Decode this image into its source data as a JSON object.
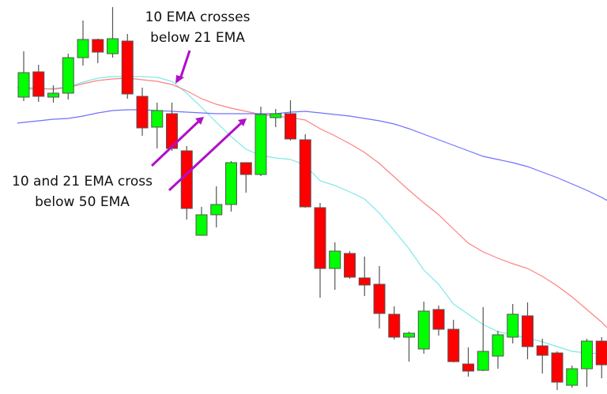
{
  "chart_data": {
    "type": "candlestick",
    "title": "",
    "xlabel": "",
    "ylabel": "",
    "grid": false,
    "colors": {
      "up": "#00ff00",
      "down": "#ff0000",
      "wick": "#555555",
      "ema10": "#7fe8e8",
      "ema21": "#ff8080",
      "ema50": "#7070ff",
      "arrow": "#b010c8"
    },
    "candles": [
      [
        377,
        435,
        372,
        408
      ],
      [
        409,
        418,
        371,
        378
      ],
      [
        377,
        392,
        370,
        382
      ],
      [
        382,
        432,
        374,
        427
      ],
      [
        427,
        474,
        417,
        450
      ],
      [
        450,
        451,
        420,
        434
      ],
      [
        432,
        491,
        427,
        451
      ],
      [
        448,
        457,
        375,
        381
      ],
      [
        378,
        389,
        328,
        338
      ],
      [
        339,
        370,
        312,
        360
      ],
      [
        356,
        370,
        309,
        312
      ],
      [
        309,
        315,
        222,
        236
      ],
      [
        202,
        238,
        202,
        228
      ],
      [
        228,
        264,
        212,
        241
      ],
      [
        241,
        296,
        232,
        294
      ],
      [
        294,
        294,
        256,
        279
      ],
      [
        279,
        365,
        277,
        355
      ],
      [
        351,
        362,
        339,
        356
      ],
      [
        356,
        373,
        322,
        324
      ],
      [
        323,
        330,
        237,
        238
      ],
      [
        237,
        243,
        123,
        160
      ],
      [
        160,
        193,
        133,
        182
      ],
      [
        179,
        182,
        147,
        149
      ],
      [
        148,
        175,
        125,
        139
      ],
      [
        140,
        163,
        84,
        103
      ],
      [
        102,
        112,
        70,
        73
      ],
      [
        73,
        80,
        42,
        78
      ],
      [
        58,
        118,
        52,
        106
      ],
      [
        108,
        113,
        75,
        83
      ],
      [
        83,
        95,
        41,
        42
      ],
      [
        39,
        60,
        23,
        30
      ],
      [
        31,
        111,
        30,
        55
      ],
      [
        49,
        81,
        33,
        76
      ],
      [
        73,
        115,
        65,
        102
      ],
      [
        100,
        117,
        45,
        61
      ],
      [
        62,
        71,
        27,
        50
      ],
      [
        53,
        55,
        6,
        16
      ],
      [
        12,
        37,
        9,
        33
      ],
      [
        33,
        71,
        10,
        68
      ],
      [
        68,
        73,
        21,
        38
      ]
    ],
    "series": [
      {
        "values": [
          387,
          387,
          388,
          390,
          396,
          401,
          403,
          403,
          403,
          402,
          397,
          382,
          364,
          345,
          327,
          311,
          303,
          300,
          298,
          291,
          271,
          265,
          257,
          248,
          230,
          208,
          185,
          158,
          140,
          115,
          102,
          89,
          80,
          76,
          72,
          67,
          61,
          55,
          53,
          52
        ]
      },
      {
        "values": [
          389,
          388,
          387,
          389,
          394,
          398,
          400,
          401,
          399,
          397,
          393,
          385,
          375,
          368,
          363,
          359,
          355,
          353,
          351,
          348,
          337,
          328,
          318,
          307,
          293,
          276,
          259,
          243,
          228,
          210,
          192,
          181,
          173,
          166,
          160,
          150,
          138,
          124,
          108,
          92
        ]
      },
      {
        "values": [
          345,
          347,
          349,
          350,
          353,
          357,
          360,
          361,
          361,
          360,
          359,
          358,
          357,
          356,
          356,
          356,
          356,
          356,
          358,
          359,
          357,
          355,
          353,
          350,
          347,
          343,
          337,
          330,
          323,
          316,
          309,
          302,
          298,
          294,
          289,
          282,
          275,
          267,
          259,
          250
        ]
      }
    ],
    "annotations": [
      {
        "line1": "10 EMA crosses",
        "line2": "below 21 EMA"
      },
      {
        "line1": "10 and 21 EMA cross",
        "line2": "below 50 EMA"
      }
    ]
  }
}
